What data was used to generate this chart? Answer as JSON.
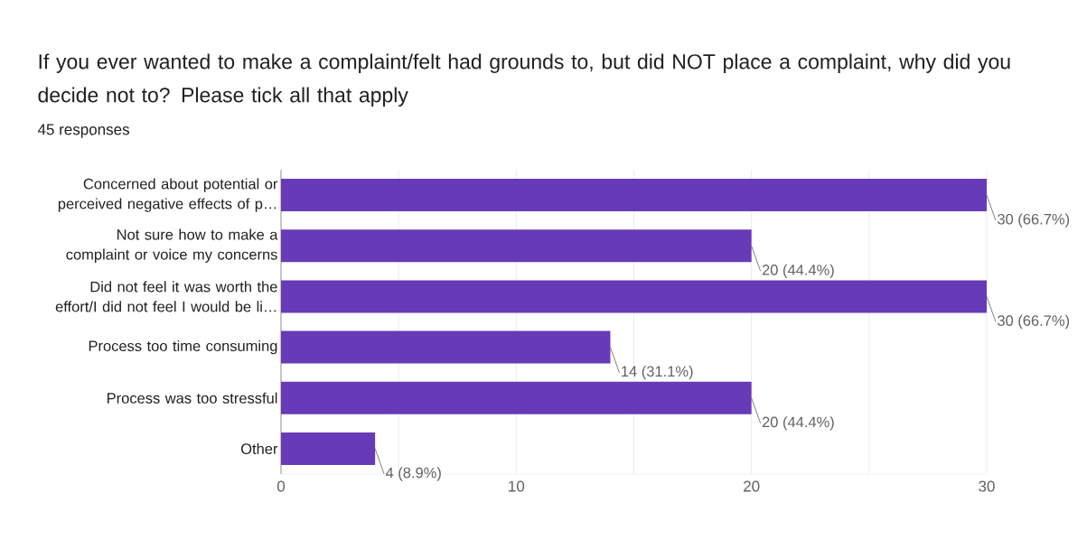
{
  "chart_data": {
    "type": "bar",
    "orientation": "horizontal",
    "title": "If you ever wanted to make a complaint/felt had grounds to, but did NOT place a complaint, why did you decide not to?  Please tick all that apply",
    "subtitle": "45 responses",
    "categories": [
      "Concerned about potential or perceived negative effects of p…",
      "Not sure how to make a complaint or voice my concerns",
      "Did not feel it was worth the effort/I did not feel I would be li…",
      "Process too time consuming",
      "Process was too stressful",
      "Other"
    ],
    "values": [
      30,
      20,
      30,
      14,
      20,
      4
    ],
    "value_labels": [
      "30 (66.7%)",
      "20 (44.4%)",
      "30 (66.7%)",
      "14 (31.1%)",
      "20 (44.4%)",
      "4 (8.9%)"
    ],
    "color": "#673ab7",
    "xlim": [
      0,
      30
    ],
    "xticks": [
      0,
      {
        "value": 5,
        "label": null
      },
      10,
      {
        "value": 15,
        "label": null
      },
      20,
      {
        "value": 25,
        "label": null
      },
      30
    ],
    "grid": "x"
  }
}
